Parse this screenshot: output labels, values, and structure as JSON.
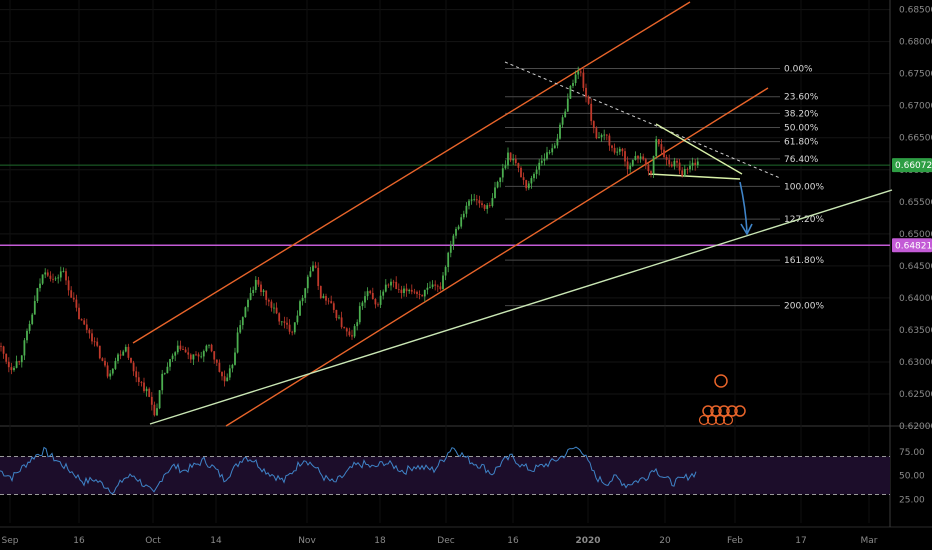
{
  "chart_data": {
    "type": "candlestick",
    "main_price_range": [
      0.62,
      0.6865
    ],
    "price_ticks": [
      "0.68500",
      "0.68000",
      "0.67500",
      "0.67000",
      "0.66500",
      "0.66000",
      "0.65500",
      "0.65000",
      "0.64500",
      "0.64000",
      "0.63500",
      "0.63000",
      "0.62500",
      "0.62000"
    ],
    "current_price": {
      "label": "0.66072",
      "value": 0.66072,
      "color": "#2e9e44"
    },
    "support_level": {
      "label": "0.64821",
      "value": 0.64821,
      "color": "#c35bd6"
    },
    "x_labels": [
      "Sep",
      "16",
      "Oct",
      "14",
      "Nov",
      "18",
      "Dec",
      "16",
      "2020",
      "20",
      "Feb",
      "17",
      "Mar"
    ],
    "fib_levels": [
      {
        "label": "0.00%",
        "value": 0.6758,
        "color": "#d8d8d8"
      },
      {
        "label": "23.60%",
        "value": 0.6714,
        "color": "#d8d8d8"
      },
      {
        "label": "38.20%",
        "value": 0.6688,
        "color": "#4f8fd8"
      },
      {
        "label": "50.00%",
        "value": 0.6666,
        "color": "#d8d8d8"
      },
      {
        "label": "61.80%",
        "value": 0.6644,
        "color": "#d8d8d8"
      },
      {
        "label": "76.40%",
        "value": 0.6617,
        "color": "#d8d8d8"
      },
      {
        "label": "100.00%",
        "value": 0.6574,
        "color": "#d8d8d8"
      },
      {
        "label": "127.20%",
        "value": 0.6523,
        "color": "#d8d8d8"
      },
      {
        "label": "161.80%",
        "value": 0.6459,
        "color": "#d8d8d8"
      },
      {
        "label": "200.00%",
        "value": 0.6388,
        "color": "#777777"
      }
    ],
    "price_path": [
      [
        0,
        0.6325
      ],
      [
        10,
        0.629
      ],
      [
        20,
        0.6305
      ],
      [
        30,
        0.636
      ],
      [
        38,
        0.6415
      ],
      [
        45,
        0.6445
      ],
      [
        55,
        0.6425
      ],
      [
        62,
        0.6445
      ],
      [
        70,
        0.641
      ],
      [
        80,
        0.6365
      ],
      [
        90,
        0.6345
      ],
      [
        100,
        0.631
      ],
      [
        108,
        0.628
      ],
      [
        118,
        0.631
      ],
      [
        126,
        0.6325
      ],
      [
        133,
        0.6285
      ],
      [
        140,
        0.627
      ],
      [
        148,
        0.625
      ],
      [
        156,
        0.6215
      ],
      [
        162,
        0.6275
      ],
      [
        170,
        0.63
      ],
      [
        180,
        0.6325
      ],
      [
        190,
        0.6305
      ],
      [
        200,
        0.631
      ],
      [
        210,
        0.6325
      ],
      [
        218,
        0.629
      ],
      [
        226,
        0.6265
      ],
      [
        232,
        0.6295
      ],
      [
        240,
        0.636
      ],
      [
        248,
        0.6395
      ],
      [
        256,
        0.6425
      ],
      [
        264,
        0.6405
      ],
      [
        272,
        0.6385
      ],
      [
        282,
        0.636
      ],
      [
        292,
        0.635
      ],
      [
        300,
        0.639
      ],
      [
        308,
        0.6435
      ],
      [
        314,
        0.6455
      ],
      [
        320,
        0.6405
      ],
      [
        328,
        0.6395
      ],
      [
        336,
        0.6375
      ],
      [
        344,
        0.635
      ],
      [
        352,
        0.6335
      ],
      [
        360,
        0.6385
      ],
      [
        368,
        0.641
      ],
      [
        376,
        0.6385
      ],
      [
        384,
        0.6415
      ],
      [
        392,
        0.6425
      ],
      [
        400,
        0.6405
      ],
      [
        410,
        0.6415
      ],
      [
        420,
        0.6405
      ],
      [
        432,
        0.6415
      ],
      [
        440,
        0.6415
      ],
      [
        446,
        0.6455
      ],
      [
        452,
        0.6495
      ],
      [
        458,
        0.6515
      ],
      [
        466,
        0.6545
      ],
      [
        474,
        0.6555
      ],
      [
        482,
        0.6545
      ],
      [
        490,
        0.654
      ],
      [
        496,
        0.6575
      ],
      [
        502,
        0.6595
      ],
      [
        508,
        0.6625
      ],
      [
        514,
        0.6615
      ],
      [
        520,
        0.6595
      ],
      [
        526,
        0.6575
      ],
      [
        532,
        0.6585
      ],
      [
        540,
        0.6615
      ],
      [
        548,
        0.6625
      ],
      [
        556,
        0.6645
      ],
      [
        562,
        0.6675
      ],
      [
        568,
        0.6715
      ],
      [
        574,
        0.6745
      ],
      [
        580,
        0.6755
      ],
      [
        586,
        0.6715
      ],
      [
        592,
        0.6675
      ],
      [
        598,
        0.6645
      ],
      [
        606,
        0.6655
      ],
      [
        614,
        0.6625
      ],
      [
        620,
        0.6635
      ],
      [
        626,
        0.6605
      ],
      [
        634,
        0.6615
      ],
      [
        642,
        0.6625
      ],
      [
        650,
        0.6585
      ],
      [
        656,
        0.6645
      ],
      [
        662,
        0.6635
      ],
      [
        668,
        0.6605
      ],
      [
        676,
        0.6615
      ],
      [
        682,
        0.6595
      ],
      [
        690,
        0.6605
      ],
      [
        698,
        0.6615
      ]
    ],
    "rsi": {
      "range": [
        0,
        100
      ],
      "ticks": [
        "75.00",
        "50.00",
        "25.00"
      ],
      "upper": 70,
      "lower": 30,
      "path": [
        [
          0,
          55
        ],
        [
          12,
          48
        ],
        [
          24,
          60
        ],
        [
          34,
          70
        ],
        [
          44,
          76
        ],
        [
          54,
          68
        ],
        [
          64,
          60
        ],
        [
          74,
          52
        ],
        [
          84,
          43
        ],
        [
          94,
          46
        ],
        [
          104,
          40
        ],
        [
          114,
          33
        ],
        [
          124,
          47
        ],
        [
          134,
          50
        ],
        [
          144,
          40
        ],
        [
          154,
          30
        ],
        [
          164,
          52
        ],
        [
          174,
          60
        ],
        [
          184,
          55
        ],
        [
          194,
          60
        ],
        [
          204,
          66
        ],
        [
          214,
          58
        ],
        [
          224,
          46
        ],
        [
          234,
          57
        ],
        [
          244,
          70
        ],
        [
          254,
          66
        ],
        [
          264,
          56
        ],
        [
          274,
          50
        ],
        [
          284,
          44
        ],
        [
          294,
          56
        ],
        [
          304,
          68
        ],
        [
          314,
          60
        ],
        [
          324,
          48
        ],
        [
          334,
          42
        ],
        [
          344,
          50
        ],
        [
          354,
          60
        ],
        [
          364,
          62
        ],
        [
          374,
          58
        ],
        [
          384,
          64
        ],
        [
          394,
          60
        ],
        [
          404,
          54
        ],
        [
          414,
          60
        ],
        [
          424,
          58
        ],
        [
          434,
          56
        ],
        [
          444,
          68
        ],
        [
          452,
          80
        ],
        [
          462,
          72
        ],
        [
          472,
          64
        ],
        [
          482,
          60
        ],
        [
          492,
          52
        ],
        [
          502,
          64
        ],
        [
          512,
          70
        ],
        [
          522,
          60
        ],
        [
          532,
          56
        ],
        [
          542,
          60
        ],
        [
          552,
          64
        ],
        [
          562,
          70
        ],
        [
          572,
          78
        ],
        [
          580,
          80
        ],
        [
          588,
          64
        ],
        [
          596,
          48
        ],
        [
          606,
          42
        ],
        [
          616,
          48
        ],
        [
          626,
          40
        ],
        [
          636,
          44
        ],
        [
          646,
          48
        ],
        [
          654,
          58
        ],
        [
          662,
          50
        ],
        [
          672,
          42
        ],
        [
          682,
          46
        ],
        [
          690,
          50
        ],
        [
          698,
          54
        ]
      ]
    }
  }
}
